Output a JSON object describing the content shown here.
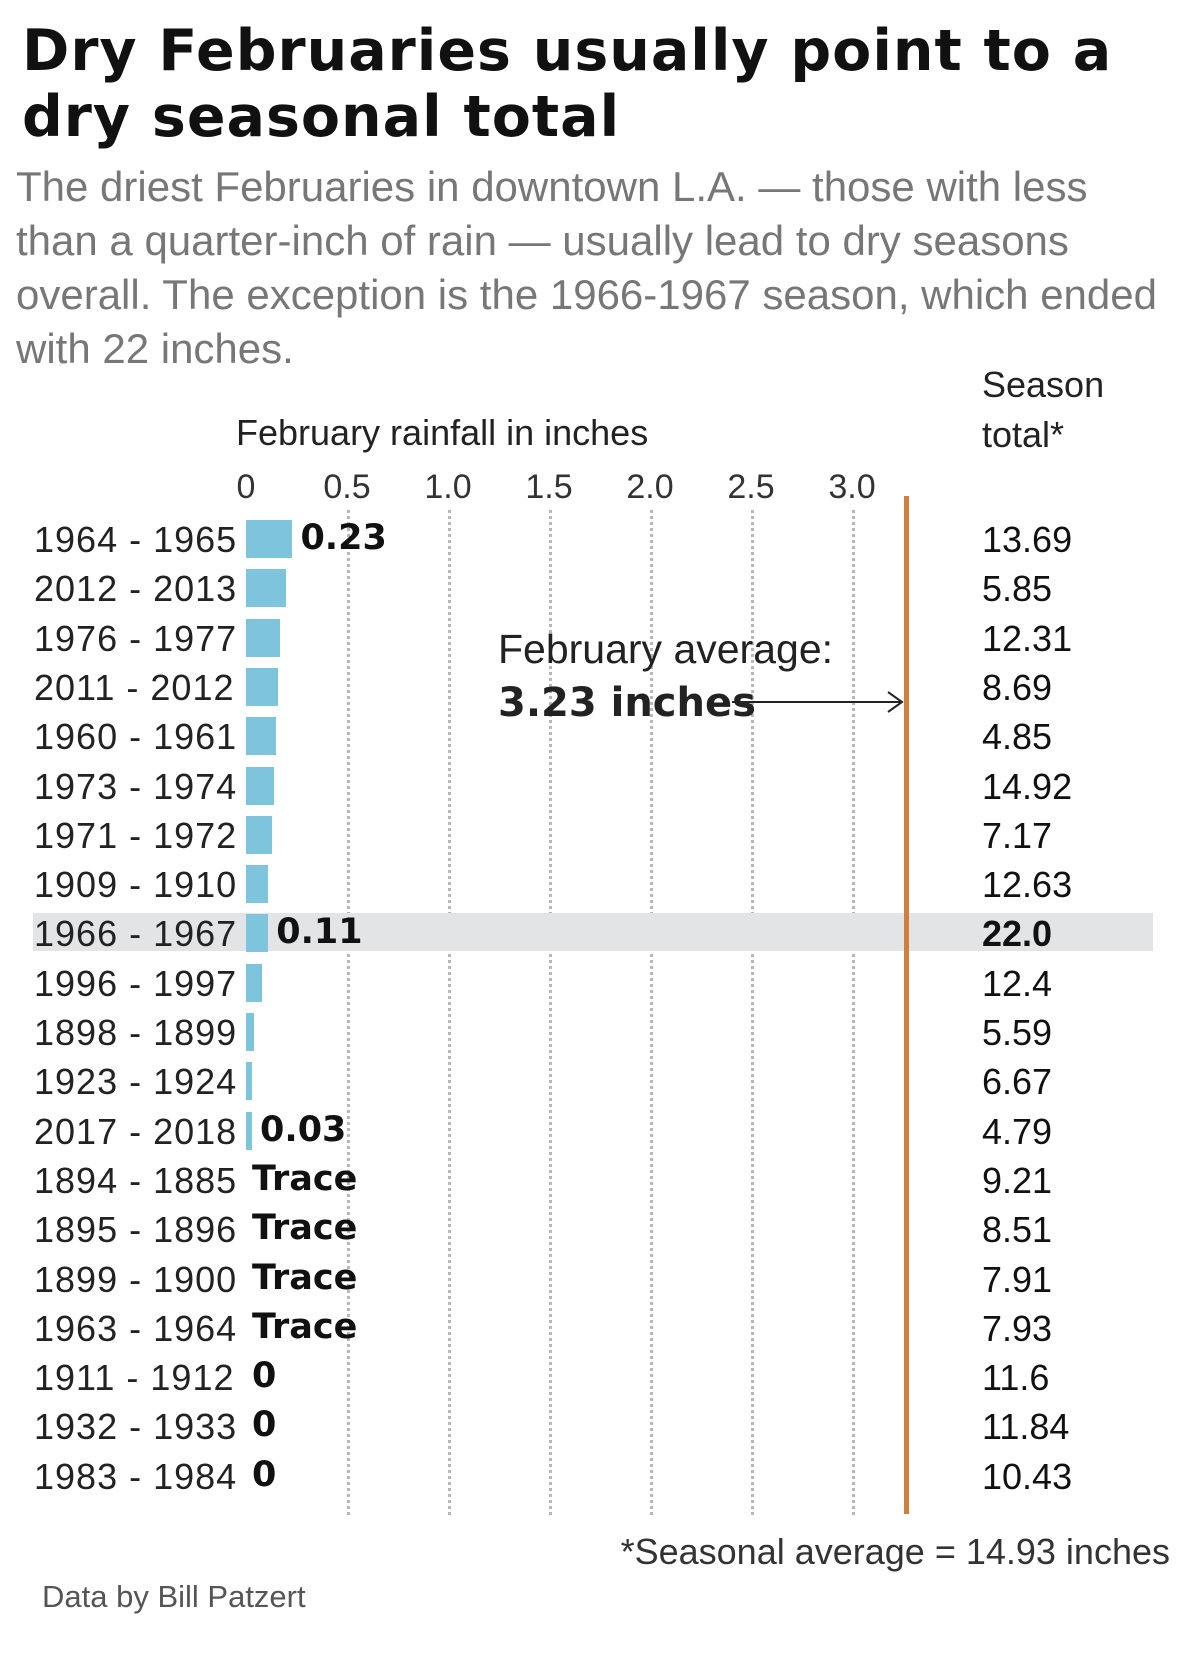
{
  "title": "Dry Februaries usually point to a dry seasonal total",
  "subtitle": "The driest Februaries in downtown L.A. — those with less than a quarter-inch of rain — usually lead to dry seasons overall. The exception is the 1966-1967 season, which ended with 22 inches.",
  "season_total_header": "Season\ntotal*",
  "annotation": {
    "line1": "February average:",
    "line2": "3.23 inches"
  },
  "footnote": "*Seasonal average = 14.93 inches",
  "source": "Data by Bill Patzert",
  "colors": {
    "bar": "#7ec4dd",
    "average_line": "#d07f3c",
    "highlight": "#e3e4e6"
  },
  "chart_data": {
    "type": "bar",
    "orientation": "horizontal",
    "title": "Dry Februaries usually point to a dry seasonal total",
    "xlabel": "February rainfall in inches",
    "x_ticks": [
      "0",
      "0.5",
      "1.0",
      "1.5",
      "2.0",
      "2.5",
      "3.0"
    ],
    "xlim": [
      0,
      3.23
    ],
    "grid": true,
    "reference_line": {
      "label": "February average:",
      "value_label": "3.23 inches",
      "value": 3.23
    },
    "highlighted_category": "1966 - 1967",
    "categories": [
      "1964 - 1965",
      "2012 - 2013",
      "1976 - 1977",
      "2011 - 2012",
      "1960 - 1961",
      "1973 - 1974",
      "1971 - 1972",
      "1909 - 1910",
      "1966 - 1967",
      "1996 - 1997",
      "1898 - 1899",
      "1923 - 1924",
      "2017 - 2018",
      "1894 - 1885",
      "1895 - 1896",
      "1899 - 1900",
      "1963 - 1964",
      "1911 - 1912",
      "1932 - 1933",
      "1983 - 1984"
    ],
    "values": [
      0.23,
      0.2,
      0.17,
      0.16,
      0.15,
      0.14,
      0.13,
      0.11,
      0.11,
      0.08,
      0.04,
      0.03,
      0.03,
      0,
      0,
      0,
      0,
      0,
      0,
      0
    ],
    "value_labels": [
      "0.23",
      "",
      "",
      "",
      "",
      "",
      "",
      "",
      "0.11",
      "",
      "",
      "",
      "0.03",
      "Trace",
      "Trace",
      "Trace",
      "Trace",
      "0",
      "0",
      "0"
    ],
    "season_totals": [
      "13.69",
      "5.85",
      "12.31",
      "8.69",
      "4.85",
      "14.92",
      "7.17",
      "12.63",
      "22.0",
      "12.4",
      "5.59",
      "6.67",
      "4.79",
      "9.21",
      "8.51",
      "7.91",
      "7.93",
      "11.6",
      "11.84",
      "10.43"
    ]
  }
}
